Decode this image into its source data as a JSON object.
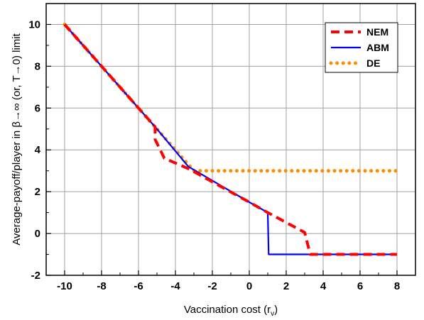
{
  "chart_data": {
    "type": "line",
    "title": "",
    "xlabel": "Vaccination cost (r",
    "xlabel_sub": "v",
    "xlabel_close": ")",
    "ylabel": "Average-payoff/player in β→∞ (or, T→0) limit",
    "xlim": [
      -11,
      9
    ],
    "ylim": [
      -2,
      11
    ],
    "xticks": [
      -10,
      -8,
      -6,
      -4,
      -2,
      0,
      2,
      4,
      6,
      8
    ],
    "yticks": [
      -2,
      0,
      2,
      4,
      6,
      8,
      10
    ],
    "xtick_labels": [
      "-10",
      "-8",
      "-6",
      "-4",
      "-2",
      "0",
      "2",
      "4",
      "6",
      "8"
    ],
    "ytick_labels": [
      "-2",
      "0",
      "2",
      "4",
      "6",
      "8",
      "10"
    ],
    "grid": true,
    "legend_position": "top-right",
    "series": [
      {
        "name": "NEM",
        "color": "#ff0000",
        "style": "dashed",
        "x": [
          -10,
          -5.1,
          -5.1,
          -4.6,
          -3.3,
          0,
          1,
          3,
          3.3,
          8
        ],
        "y": [
          10,
          5.1,
          4.5,
          3.6,
          3.1,
          1.5,
          1.0,
          0.05,
          -1,
          -1
        ]
      },
      {
        "name": "ABM",
        "color": "#0000ff",
        "style": "solid",
        "x": [
          -10,
          -5,
          -3.3,
          0,
          1,
          1.05,
          8
        ],
        "y": [
          10,
          5,
          3.2,
          1.5,
          1.0,
          -1,
          -1
        ]
      },
      {
        "name": "DE",
        "color": "#ff8c00",
        "style": "dotted",
        "x": [
          -10,
          -3.0,
          8
        ],
        "y": [
          10,
          3.0,
          3.0
        ]
      }
    ]
  }
}
